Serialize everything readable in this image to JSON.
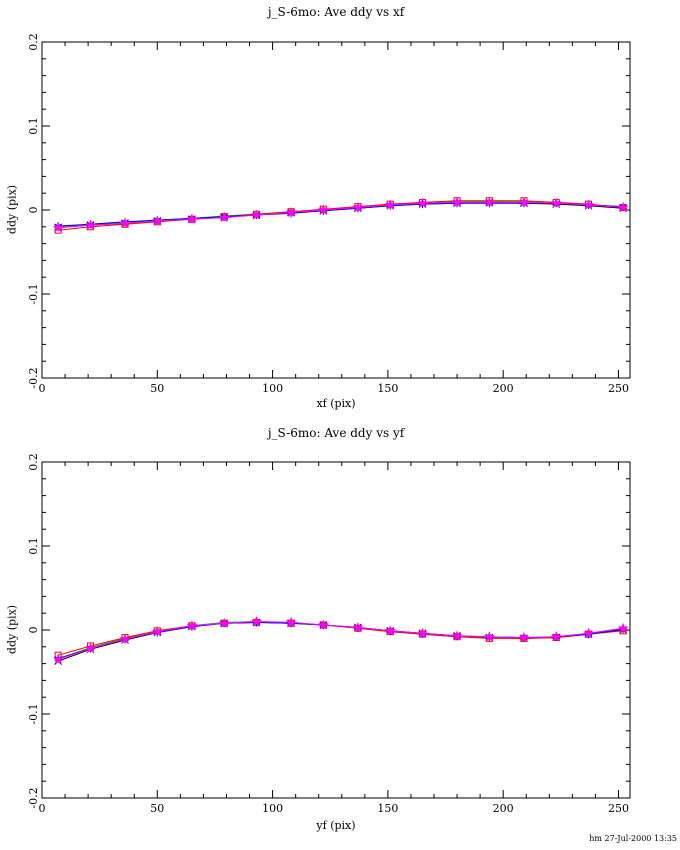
{
  "footer": {
    "timestamp": "hm 27-Jul-2000 13:35"
  },
  "chart_data": [
    {
      "type": "line",
      "title": "j_S-6mo: Ave ddy vs xf",
      "xlabel": "xf (pix)",
      "ylabel": "ddy (pix)",
      "xlim": [
        0,
        255
      ],
      "ylim": [
        -0.2,
        0.2
      ],
      "xticks": [
        0,
        50,
        100,
        150,
        200,
        250
      ],
      "xtick_labels": [
        "0",
        "50",
        "100",
        "150",
        "200",
        "250"
      ],
      "yticks": [
        -0.2,
        -0.1,
        0,
        0.1,
        0.2
      ],
      "ytick_labels": [
        "-0.2",
        "-0.1",
        "0",
        "0.1",
        "0.2"
      ],
      "x_minor_step": 10,
      "y_minor_step": 0.02,
      "grid": false,
      "legend": "none",
      "x": [
        7,
        21,
        36,
        50,
        65,
        79,
        93,
        108,
        122,
        137,
        151,
        165,
        180,
        194,
        209,
        223,
        237,
        252
      ],
      "series": [
        {
          "name": "black",
          "color": "#000000",
          "marker": "x",
          "values": [
            -0.021,
            -0.018,
            -0.016,
            -0.013,
            -0.011,
            -0.008,
            -0.006,
            -0.003,
            -0.001,
            0.002,
            0.005,
            0.007,
            0.008,
            0.009,
            0.008,
            0.007,
            0.005,
            0.002
          ]
        },
        {
          "name": "green",
          "color": "#00bb00",
          "marker": "plus",
          "values": [
            -0.02,
            -0.017,
            -0.015,
            -0.012,
            -0.01,
            -0.007,
            -0.005,
            -0.002,
            0.0,
            0.003,
            0.006,
            0.008,
            0.01,
            0.01,
            0.01,
            0.008,
            0.006,
            0.004
          ]
        },
        {
          "name": "red",
          "color": "#ff0000",
          "marker": "open-square",
          "values": [
            -0.024,
            -0.02,
            -0.017,
            -0.014,
            -0.011,
            -0.008,
            -0.005,
            -0.002,
            0.001,
            0.004,
            0.007,
            0.009,
            0.011,
            0.011,
            0.011,
            0.009,
            0.007,
            0.003
          ]
        },
        {
          "name": "blue",
          "color": "#0000ff",
          "marker": "asterisk",
          "values": [
            -0.019,
            -0.017,
            -0.014,
            -0.012,
            -0.01,
            -0.008,
            -0.006,
            -0.004,
            -0.001,
            0.002,
            0.005,
            0.007,
            0.008,
            0.008,
            0.008,
            0.008,
            0.006,
            0.004
          ]
        },
        {
          "name": "magenta",
          "color": "#ff00ff",
          "marker": "filled-star",
          "values": [
            -0.021,
            -0.018,
            -0.016,
            -0.013,
            -0.011,
            -0.009,
            -0.006,
            -0.003,
            0.0,
            0.003,
            0.006,
            0.008,
            0.009,
            0.009,
            0.009,
            0.008,
            0.006,
            0.003
          ]
        }
      ]
    },
    {
      "type": "line",
      "title": "j_S-6mo: Ave ddy vs yf",
      "xlabel": "yf (pix)",
      "ylabel": "ddy (pix)",
      "xlim": [
        0,
        255
      ],
      "ylim": [
        -0.2,
        0.2
      ],
      "xticks": [
        0,
        50,
        100,
        150,
        200,
        250
      ],
      "xtick_labels": [
        "0",
        "50",
        "100",
        "150",
        "200",
        "250"
      ],
      "yticks": [
        -0.2,
        -0.1,
        0,
        0.1,
        0.2
      ],
      "ytick_labels": [
        "-0.2",
        "-0.1",
        "0",
        "0.1",
        "0.2"
      ],
      "x_minor_step": 10,
      "y_minor_step": 0.02,
      "grid": false,
      "legend": "none",
      "x": [
        7,
        21,
        36,
        50,
        65,
        79,
        93,
        108,
        122,
        137,
        151,
        165,
        180,
        194,
        209,
        223,
        237,
        252
      ],
      "series": [
        {
          "name": "black",
          "color": "#000000",
          "marker": "x",
          "values": [
            -0.037,
            -0.023,
            -0.012,
            -0.003,
            0.004,
            0.008,
            0.009,
            0.008,
            0.006,
            0.003,
            -0.001,
            -0.004,
            -0.007,
            -0.009,
            -0.01,
            -0.009,
            -0.005,
            0.0
          ]
        },
        {
          "name": "green",
          "color": "#00bb00",
          "marker": "plus",
          "values": [
            -0.034,
            -0.021,
            -0.01,
            -0.002,
            0.005,
            0.009,
            0.01,
            0.009,
            0.006,
            0.003,
            -0.001,
            -0.005,
            -0.008,
            -0.009,
            -0.01,
            -0.008,
            -0.004,
            0.002
          ]
        },
        {
          "name": "red",
          "color": "#ff0000",
          "marker": "open-square",
          "values": [
            -0.03,
            -0.019,
            -0.009,
            -0.001,
            0.005,
            0.008,
            0.009,
            0.008,
            0.006,
            0.002,
            -0.002,
            -0.005,
            -0.008,
            -0.01,
            -0.01,
            -0.009,
            -0.005,
            -0.001
          ]
        },
        {
          "name": "blue",
          "color": "#0000ff",
          "marker": "asterisk",
          "values": [
            -0.034,
            -0.022,
            -0.011,
            -0.003,
            0.004,
            0.008,
            0.009,
            0.008,
            0.006,
            0.003,
            -0.001,
            -0.004,
            -0.007,
            -0.008,
            -0.009,
            -0.008,
            -0.005,
            0.001
          ]
        },
        {
          "name": "magenta",
          "color": "#ff00ff",
          "marker": "filled-star",
          "values": [
            -0.035,
            -0.022,
            -0.011,
            -0.002,
            0.005,
            0.008,
            0.01,
            0.009,
            0.006,
            0.003,
            -0.001,
            -0.004,
            -0.007,
            -0.008,
            -0.009,
            -0.008,
            -0.004,
            0.002
          ]
        }
      ]
    }
  ]
}
